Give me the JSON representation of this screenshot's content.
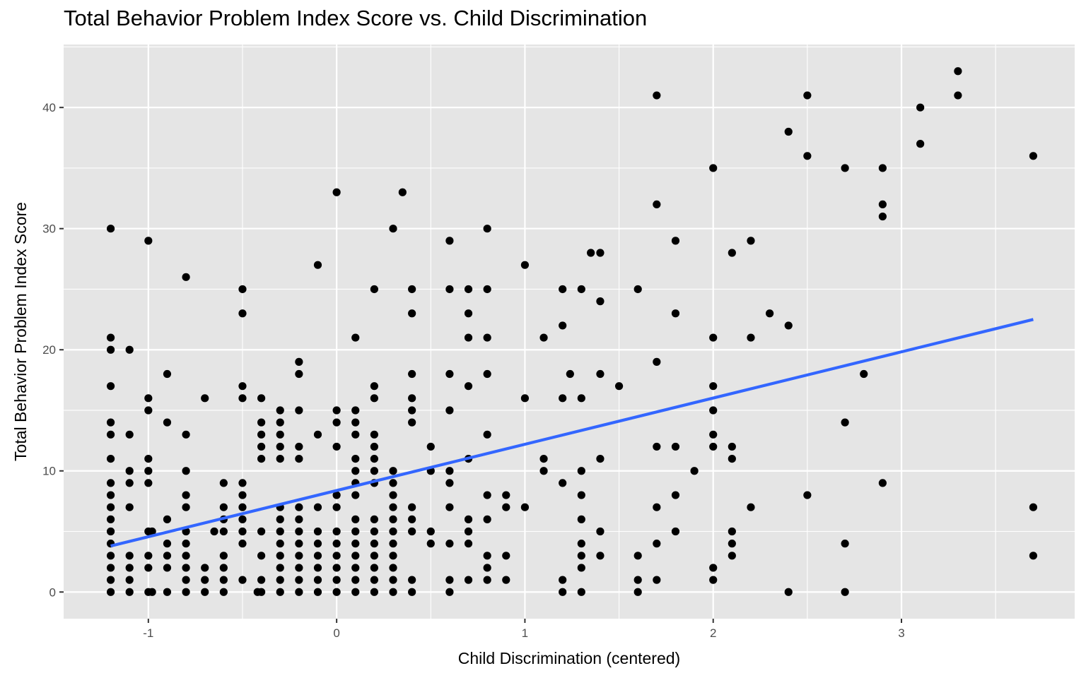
{
  "chart_data": {
    "type": "scatter",
    "title": "Total Behavior Problem Index Score vs. Child Discrimination",
    "xlabel": "Child Discrimination (centered)",
    "ylabel": "Total Behavior Problem Index Score",
    "xlim": [
      -1.45,
      3.92
    ],
    "ylim": [
      -2.2,
      45.2
    ],
    "x_ticks": [
      -1,
      0,
      1,
      2,
      3
    ],
    "y_ticks": [
      0,
      10,
      20,
      30,
      40
    ],
    "x_tick_labels": [
      "-1",
      "0",
      "1",
      "2",
      "3"
    ],
    "y_tick_labels": [
      "0",
      "10",
      "20",
      "30",
      "40"
    ],
    "grid": true,
    "colors": {
      "panel": "#e5e5e5",
      "grid": "#ffffff",
      "points": "#000000",
      "trend": "#3366ff"
    },
    "trend_line": {
      "x": [
        -1.2,
        3.7
      ],
      "y": [
        3.8,
        22.5
      ]
    },
    "points": [
      [
        -1.2,
        30
      ],
      [
        -1.2,
        21
      ],
      [
        -1.2,
        20
      ],
      [
        -1.2,
        17
      ],
      [
        -1.2,
        14
      ],
      [
        -1.2,
        13
      ],
      [
        -1.2,
        11
      ],
      [
        -1.2,
        9
      ],
      [
        -1.2,
        8
      ],
      [
        -1.2,
        7
      ],
      [
        -1.2,
        6
      ],
      [
        -1.2,
        5
      ],
      [
        -1.2,
        4
      ],
      [
        -1.2,
        3
      ],
      [
        -1.2,
        2
      ],
      [
        -1.2,
        1
      ],
      [
        -1.2,
        0
      ],
      [
        -1.1,
        20
      ],
      [
        -1.1,
        13
      ],
      [
        -1.1,
        10
      ],
      [
        -1.1,
        9
      ],
      [
        -1.1,
        7
      ],
      [
        -1.1,
        3
      ],
      [
        -1.1,
        2
      ],
      [
        -1.1,
        1
      ],
      [
        -1.1,
        0
      ],
      [
        -1.0,
        29
      ],
      [
        -1.0,
        16
      ],
      [
        -1.0,
        15
      ],
      [
        -1.0,
        11
      ],
      [
        -1.0,
        10
      ],
      [
        -1.0,
        9
      ],
      [
        -1.0,
        5
      ],
      [
        -1.0,
        3
      ],
      [
        -1.0,
        2
      ],
      [
        -1.0,
        0
      ],
      [
        -0.98,
        5
      ],
      [
        -0.98,
        0
      ],
      [
        -0.9,
        18
      ],
      [
        -0.9,
        14
      ],
      [
        -0.9,
        6
      ],
      [
        -0.9,
        4
      ],
      [
        -0.9,
        3
      ],
      [
        -0.9,
        2
      ],
      [
        -0.9,
        0
      ],
      [
        -0.8,
        26
      ],
      [
        -0.8,
        13
      ],
      [
        -0.8,
        10
      ],
      [
        -0.8,
        8
      ],
      [
        -0.8,
        7
      ],
      [
        -0.8,
        5
      ],
      [
        -0.8,
        4
      ],
      [
        -0.8,
        3
      ],
      [
        -0.8,
        2
      ],
      [
        -0.8,
        1
      ],
      [
        -0.8,
        0
      ],
      [
        -0.7,
        16
      ],
      [
        -0.7,
        2
      ],
      [
        -0.7,
        1
      ],
      [
        -0.7,
        0
      ],
      [
        -0.65,
        5
      ],
      [
        -0.6,
        9
      ],
      [
        -0.6,
        7
      ],
      [
        -0.6,
        6
      ],
      [
        -0.6,
        5
      ],
      [
        -0.6,
        3
      ],
      [
        -0.6,
        2
      ],
      [
        -0.6,
        1
      ],
      [
        -0.6,
        0
      ],
      [
        -0.5,
        25
      ],
      [
        -0.5,
        23
      ],
      [
        -0.5,
        17
      ],
      [
        -0.5,
        16
      ],
      [
        -0.5,
        9
      ],
      [
        -0.5,
        8
      ],
      [
        -0.5,
        7
      ],
      [
        -0.5,
        6
      ],
      [
        -0.5,
        5
      ],
      [
        -0.5,
        4
      ],
      [
        -0.5,
        1
      ],
      [
        -0.4,
        16
      ],
      [
        -0.4,
        14
      ],
      [
        -0.4,
        13
      ],
      [
        -0.4,
        12
      ],
      [
        -0.4,
        11
      ],
      [
        -0.4,
        5
      ],
      [
        -0.4,
        3
      ],
      [
        -0.4,
        1
      ],
      [
        -0.4,
        0
      ],
      [
        -0.42,
        0
      ],
      [
        -0.3,
        15
      ],
      [
        -0.3,
        14
      ],
      [
        -0.3,
        13
      ],
      [
        -0.3,
        12
      ],
      [
        -0.3,
        11
      ],
      [
        -0.3,
        7
      ],
      [
        -0.3,
        6
      ],
      [
        -0.3,
        5
      ],
      [
        -0.3,
        4
      ],
      [
        -0.3,
        3
      ],
      [
        -0.3,
        2
      ],
      [
        -0.3,
        1
      ],
      [
        -0.3,
        0
      ],
      [
        -0.2,
        19
      ],
      [
        -0.2,
        18
      ],
      [
        -0.2,
        15
      ],
      [
        -0.2,
        12
      ],
      [
        -0.2,
        11
      ],
      [
        -0.2,
        7
      ],
      [
        -0.2,
        6
      ],
      [
        -0.2,
        5
      ],
      [
        -0.2,
        4
      ],
      [
        -0.2,
        3
      ],
      [
        -0.2,
        2
      ],
      [
        -0.2,
        1
      ],
      [
        -0.2,
        0
      ],
      [
        -0.1,
        27
      ],
      [
        -0.1,
        13
      ],
      [
        -0.1,
        7
      ],
      [
        -0.1,
        5
      ],
      [
        -0.1,
        4
      ],
      [
        -0.1,
        3
      ],
      [
        -0.1,
        2
      ],
      [
        -0.1,
        1
      ],
      [
        -0.1,
        0
      ],
      [
        0.0,
        33
      ],
      [
        0.0,
        15
      ],
      [
        0.0,
        14
      ],
      [
        0.0,
        12
      ],
      [
        0.0,
        8
      ],
      [
        0.0,
        7
      ],
      [
        0.0,
        5
      ],
      [
        0.0,
        4
      ],
      [
        0.0,
        3
      ],
      [
        0.0,
        2
      ],
      [
        0.0,
        1
      ],
      [
        0.0,
        0
      ],
      [
        0.1,
        21
      ],
      [
        0.1,
        15
      ],
      [
        0.1,
        14
      ],
      [
        0.1,
        13
      ],
      [
        0.1,
        11
      ],
      [
        0.1,
        10
      ],
      [
        0.1,
        9
      ],
      [
        0.1,
        8
      ],
      [
        0.1,
        6
      ],
      [
        0.1,
        5
      ],
      [
        0.1,
        4
      ],
      [
        0.1,
        3
      ],
      [
        0.1,
        2
      ],
      [
        0.1,
        1
      ],
      [
        0.1,
        0
      ],
      [
        0.2,
        25
      ],
      [
        0.2,
        17
      ],
      [
        0.2,
        16
      ],
      [
        0.2,
        13
      ],
      [
        0.2,
        12
      ],
      [
        0.2,
        11
      ],
      [
        0.2,
        10
      ],
      [
        0.2,
        9
      ],
      [
        0.2,
        6
      ],
      [
        0.2,
        5
      ],
      [
        0.2,
        4
      ],
      [
        0.2,
        3
      ],
      [
        0.2,
        2
      ],
      [
        0.2,
        1
      ],
      [
        0.2,
        0
      ],
      [
        0.3,
        30
      ],
      [
        0.3,
        10
      ],
      [
        0.3,
        9
      ],
      [
        0.3,
        8
      ],
      [
        0.3,
        7
      ],
      [
        0.3,
        6
      ],
      [
        0.3,
        5
      ],
      [
        0.3,
        4
      ],
      [
        0.3,
        3
      ],
      [
        0.3,
        2
      ],
      [
        0.3,
        1
      ],
      [
        0.3,
        0
      ],
      [
        0.35,
        33
      ],
      [
        0.4,
        25
      ],
      [
        0.4,
        23
      ],
      [
        0.4,
        18
      ],
      [
        0.4,
        16
      ],
      [
        0.4,
        15
      ],
      [
        0.4,
        14
      ],
      [
        0.4,
        7
      ],
      [
        0.4,
        6
      ],
      [
        0.4,
        5
      ],
      [
        0.4,
        1
      ],
      [
        0.4,
        0
      ],
      [
        0.5,
        12
      ],
      [
        0.5,
        10
      ],
      [
        0.5,
        5
      ],
      [
        0.5,
        4
      ],
      [
        0.6,
        29
      ],
      [
        0.6,
        25
      ],
      [
        0.6,
        18
      ],
      [
        0.6,
        15
      ],
      [
        0.6,
        10
      ],
      [
        0.6,
        9
      ],
      [
        0.6,
        7
      ],
      [
        0.6,
        4
      ],
      [
        0.6,
        1
      ],
      [
        0.6,
        0
      ],
      [
        0.7,
        25
      ],
      [
        0.7,
        23
      ],
      [
        0.7,
        21
      ],
      [
        0.7,
        17
      ],
      [
        0.7,
        11
      ],
      [
        0.7,
        6
      ],
      [
        0.7,
        5
      ],
      [
        0.7,
        4
      ],
      [
        0.7,
        1
      ],
      [
        0.8,
        30
      ],
      [
        0.8,
        25
      ],
      [
        0.8,
        21
      ],
      [
        0.8,
        18
      ],
      [
        0.8,
        13
      ],
      [
        0.8,
        8
      ],
      [
        0.8,
        6
      ],
      [
        0.8,
        3
      ],
      [
        0.8,
        2
      ],
      [
        0.8,
        1
      ],
      [
        0.9,
        8
      ],
      [
        0.9,
        7
      ],
      [
        0.9,
        3
      ],
      [
        0.9,
        1
      ],
      [
        1.0,
        27
      ],
      [
        1.0,
        16
      ],
      [
        1.0,
        7
      ],
      [
        1.1,
        21
      ],
      [
        1.1,
        11
      ],
      [
        1.1,
        10
      ],
      [
        1.2,
        25
      ],
      [
        1.2,
        22
      ],
      [
        1.2,
        16
      ],
      [
        1.2,
        9
      ],
      [
        1.2,
        1
      ],
      [
        1.2,
        0
      ],
      [
        1.24,
        18
      ],
      [
        1.3,
        25
      ],
      [
        1.3,
        16
      ],
      [
        1.3,
        10
      ],
      [
        1.3,
        8
      ],
      [
        1.3,
        6
      ],
      [
        1.3,
        4
      ],
      [
        1.3,
        3
      ],
      [
        1.3,
        2
      ],
      [
        1.3,
        0
      ],
      [
        1.35,
        28
      ],
      [
        1.4,
        28
      ],
      [
        1.4,
        24
      ],
      [
        1.4,
        18
      ],
      [
        1.4,
        11
      ],
      [
        1.4,
        5
      ],
      [
        1.4,
        3
      ],
      [
        1.5,
        17
      ],
      [
        1.6,
        25
      ],
      [
        1.6,
        3
      ],
      [
        1.6,
        1
      ],
      [
        1.6,
        0
      ],
      [
        1.7,
        41
      ],
      [
        1.7,
        32
      ],
      [
        1.7,
        19
      ],
      [
        1.7,
        12
      ],
      [
        1.7,
        7
      ],
      [
        1.7,
        4
      ],
      [
        1.7,
        1
      ],
      [
        1.8,
        29
      ],
      [
        1.8,
        23
      ],
      [
        1.8,
        12
      ],
      [
        1.8,
        8
      ],
      [
        1.8,
        5
      ],
      [
        1.9,
        10
      ],
      [
        2.0,
        35
      ],
      [
        2.0,
        21
      ],
      [
        2.0,
        17
      ],
      [
        2.0,
        15
      ],
      [
        2.0,
        13
      ],
      [
        2.0,
        12
      ],
      [
        2.0,
        2
      ],
      [
        2.0,
        1
      ],
      [
        2.1,
        28
      ],
      [
        2.1,
        12
      ],
      [
        2.1,
        11
      ],
      [
        2.1,
        5
      ],
      [
        2.1,
        4
      ],
      [
        2.1,
        3
      ],
      [
        2.2,
        29
      ],
      [
        2.2,
        21
      ],
      [
        2.2,
        7
      ],
      [
        2.3,
        23
      ],
      [
        2.4,
        38
      ],
      [
        2.4,
        22
      ],
      [
        2.4,
        0
      ],
      [
        2.5,
        41
      ],
      [
        2.5,
        36
      ],
      [
        2.5,
        8
      ],
      [
        2.7,
        35
      ],
      [
        2.7,
        14
      ],
      [
        2.7,
        4
      ],
      [
        2.7,
        0
      ],
      [
        2.8,
        18
      ],
      [
        2.9,
        35
      ],
      [
        2.9,
        32
      ],
      [
        2.9,
        31
      ],
      [
        2.9,
        9
      ],
      [
        3.1,
        40
      ],
      [
        3.1,
        37
      ],
      [
        3.3,
        43
      ],
      [
        3.3,
        41
      ],
      [
        3.7,
        36
      ],
      [
        3.7,
        7
      ],
      [
        3.7,
        3
      ]
    ]
  }
}
